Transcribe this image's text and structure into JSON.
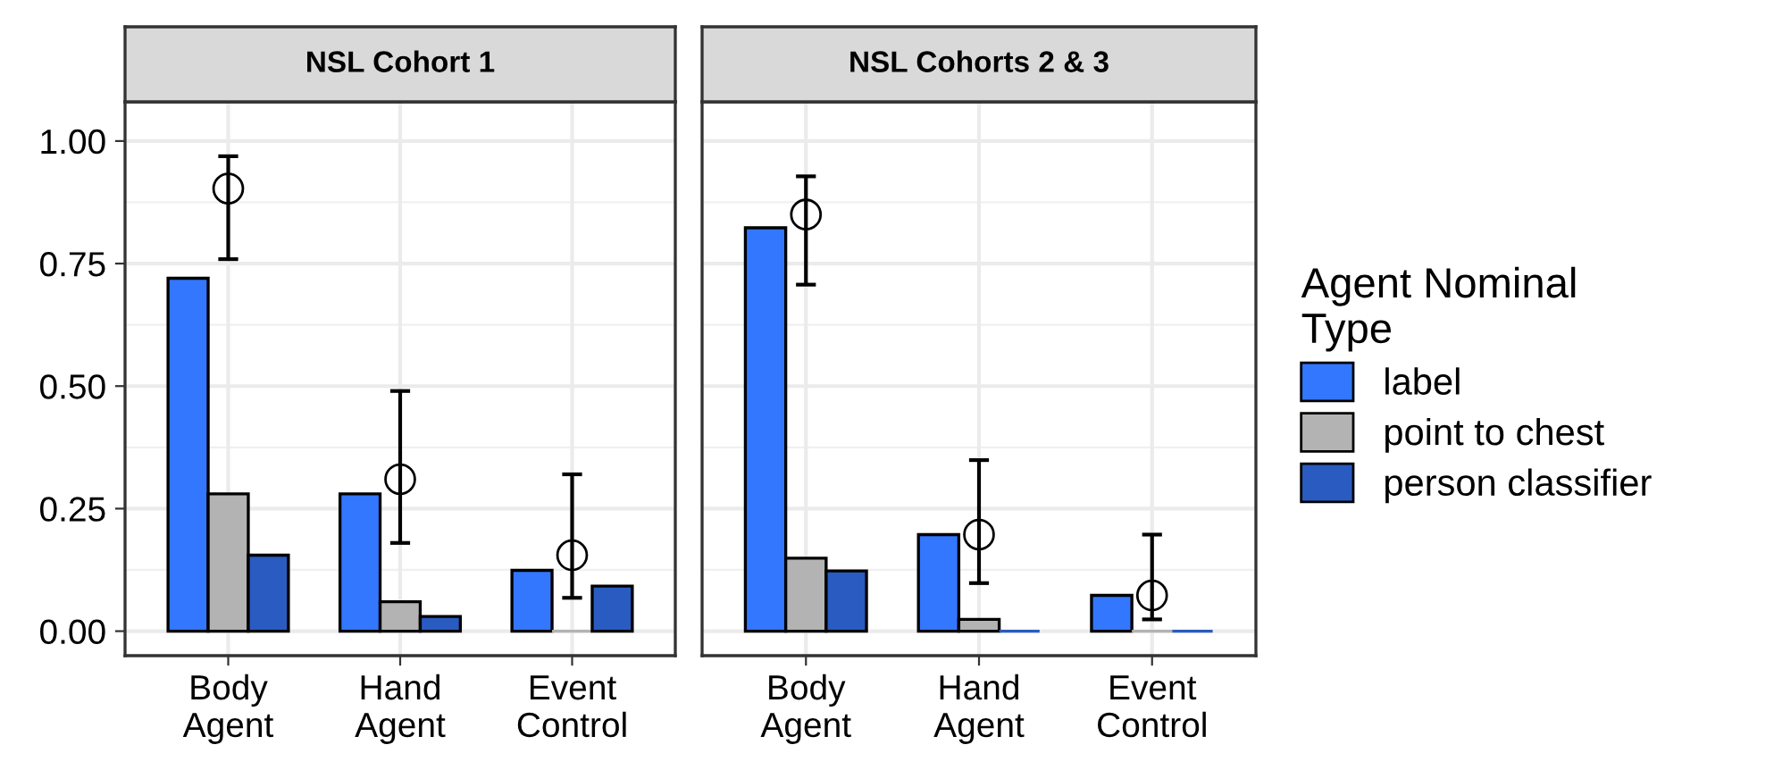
{
  "chart_data": [
    {
      "type": "bar",
      "title": "NSL Cohort 1",
      "categories": [
        "Body Agent",
        "Hand Agent",
        "Event Control"
      ],
      "ylim": [
        -0.05,
        1.08
      ],
      "yticks": [
        {
          "value": 0,
          "label": "0.00"
        },
        {
          "value": 0.25,
          "label": "0.25"
        },
        {
          "value": 0.5,
          "label": "0.50"
        },
        {
          "value": 0.75,
          "label": "0.75"
        },
        {
          "value": 1,
          "label": "1.00"
        }
      ],
      "grid": true,
      "legend": "right",
      "legend_title": "Agent Nominal Type",
      "series": [
        {
          "name": "label",
          "color": "#3377ff",
          "values": [
            0.72,
            0.28,
            0.124
          ]
        },
        {
          "name": "point to chest",
          "color": "#b3b3b3",
          "values": [
            0.28,
            0.06,
            0
          ]
        },
        {
          "name": "person classifier",
          "color": "#2a5bc0",
          "values": [
            0.155,
            0.03,
            0.092
          ]
        },
        {
          "type": "scatter",
          "color": "#000000",
          "marker": "circle",
          "x": [
            "Body Agent",
            "Hand Agent",
            "Event Control"
          ],
          "values": [
            0.903,
            0.31,
            0.155
          ],
          "errors": [
            [
              0.759,
              0.969
            ],
            [
              0.18,
              0.49
            ],
            [
              0.068,
              0.32
            ]
          ]
        }
      ]
    },
    {
      "type": "bar",
      "title": "NSL Cohorts 2 & 3",
      "categories": [
        "Body Agent",
        "Hand Agent",
        "Event Control"
      ],
      "ylim": [
        -0.05,
        1.08
      ],
      "yticks": [
        0,
        0.25,
        0.5,
        0.75,
        1
      ],
      "tick_labels": "x",
      "grid": true,
      "series": [
        {
          "color": "#3377ff",
          "values": [
            0.823,
            0.197,
            0.073
          ]
        },
        {
          "color": "#b3b3b3",
          "values": [
            0.149,
            0.024,
            0
          ]
        },
        {
          "color": "#2a5bc0",
          "values": [
            0.123,
            0,
            0
          ]
        },
        {
          "type": "scatter",
          "color": "#000000",
          "marker": "circle",
          "x": [
            "Body Agent",
            "Hand Agent",
            "Event Control"
          ],
          "values": [
            0.85,
            0.197,
            0.073
          ],
          "errors": [
            [
              0.707,
              0.928
            ],
            [
              0.098,
              0.349
            ],
            [
              0.024,
              0.197
            ]
          ]
        }
      ]
    }
  ]
}
